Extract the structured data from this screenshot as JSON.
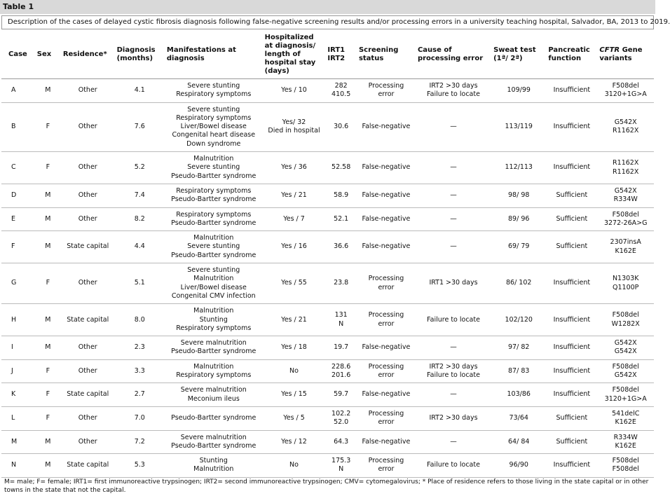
{
  "title": "Table 1",
  "caption": "Description of the cases of delayed cystic fibrosis diagnosis following false-negative screening results and/or processing errors in a university teaching hospital, Salvador, BA, 2013 to 2019.",
  "table": {
    "header": [
      [
        "Case"
      ],
      [
        "Sex"
      ],
      [
        "Residence*"
      ],
      [
        "Diagnosis",
        "(months)"
      ],
      [
        "Manifestations at",
        "diagnosis"
      ],
      [
        "Hospitalized",
        "at diagnosis/",
        "length of",
        "hospital stay",
        "(days)"
      ],
      [
        "IRT1",
        "IRT2"
      ],
      [
        "Screening",
        "status"
      ],
      [
        "Cause of",
        "processing error"
      ],
      [
        "Sweat test",
        "(1ª/ 2ª)"
      ],
      [
        "Pancreatic",
        "function"
      ],
      [
        "CFTR",
        " Gene",
        "variants"
      ]
    ],
    "rows": [
      [
        [
          "A"
        ],
        [
          "M"
        ],
        [
          "Other"
        ],
        [
          "4.1"
        ],
        [
          "Severe stunting",
          "Respiratory symptoms"
        ],
        [
          "Yes / 10"
        ],
        [
          "282",
          "410.5"
        ],
        [
          "Processing",
          "error"
        ],
        [
          "IRT2 >30 days",
          "Failure to locate"
        ],
        [
          "109/99"
        ],
        [
          "Insufficient"
        ],
        [
          "F508del",
          "3120+1G>A"
        ]
      ],
      [
        [
          "B"
        ],
        [
          "F"
        ],
        [
          "Other"
        ],
        [
          "7.6"
        ],
        [
          "Severe stunting",
          "Respiratory symptoms",
          "Liver/Bowel disease",
          "Congenital heart disease",
          "Down syndrome"
        ],
        [
          "Yes/ 32",
          "Died in hospital"
        ],
        [
          "30.6"
        ],
        [
          "False-negative"
        ],
        [
          "—"
        ],
        [
          "113/119"
        ],
        [
          "Insufficient"
        ],
        [
          "G542X",
          "R1162X"
        ]
      ],
      [
        [
          "C"
        ],
        [
          "F"
        ],
        [
          "Other"
        ],
        [
          "5.2"
        ],
        [
          "Malnutrition",
          "Severe stunting",
          "Pseudo-Bartter syndrome"
        ],
        [
          "Yes / 36"
        ],
        [
          "52.58"
        ],
        [
          "False-negative"
        ],
        [
          "—"
        ],
        [
          "112/113"
        ],
        [
          "Insufficient"
        ],
        [
          "R1162X",
          "R1162X"
        ]
      ],
      [
        [
          "D"
        ],
        [
          "M"
        ],
        [
          "Other"
        ],
        [
          "7.4"
        ],
        [
          "Respiratory symptoms",
          "Pseudo-Bartter syndrome"
        ],
        [
          "Yes / 21"
        ],
        [
          "58.9"
        ],
        [
          "False-negative"
        ],
        [
          "—"
        ],
        [
          "98/ 98"
        ],
        [
          "Sufficient"
        ],
        [
          "G542X",
          "R334W"
        ]
      ],
      [
        [
          "E"
        ],
        [
          "M"
        ],
        [
          "Other"
        ],
        [
          "8.2"
        ],
        [
          "Respiratory symptoms",
          "Pseudo-Bartter syndrome"
        ],
        [
          "Yes / 7"
        ],
        [
          "52.1"
        ],
        [
          "False-negative"
        ],
        [
          "—"
        ],
        [
          "89/ 96"
        ],
        [
          "Sufficient"
        ],
        [
          "F508del",
          "3272-26A>G"
        ]
      ],
      [
        [
          "F"
        ],
        [
          "M"
        ],
        [
          "State capital"
        ],
        [
          "4.4"
        ],
        [
          "Malnutrition",
          "Severe stunting",
          "Pseudo-Bartter syndrome"
        ],
        [
          "Yes / 16"
        ],
        [
          "36.6"
        ],
        [
          "False-negative"
        ],
        [
          "—"
        ],
        [
          "69/ 79"
        ],
        [
          "Sufficient"
        ],
        [
          "2307insA",
          "K162E"
        ]
      ],
      [
        [
          "G"
        ],
        [
          "F"
        ],
        [
          "Other"
        ],
        [
          "5.1"
        ],
        [
          "Severe stunting",
          "Malnutrition",
          "Liver/Bowel disease",
          "Congenital CMV infection"
        ],
        [
          "Yes / 55"
        ],
        [
          "23.8"
        ],
        [
          "Processing",
          "error"
        ],
        [
          "IRT1 >30 days"
        ],
        [
          "86/ 102"
        ],
        [
          "Insufficient"
        ],
        [
          "N1303K",
          "Q1100P"
        ]
      ],
      [
        [
          "H"
        ],
        [
          "M"
        ],
        [
          "State capital"
        ],
        [
          "8.0"
        ],
        [
          "Malnutrition",
          "Stunting",
          "Respiratory symptoms"
        ],
        [
          "Yes / 21"
        ],
        [
          "131",
          "N"
        ],
        [
          "Processing",
          "error"
        ],
        [
          "Failure to locate"
        ],
        [
          "102/120"
        ],
        [
          "Insufficient"
        ],
        [
          "F508del",
          "W1282X"
        ]
      ],
      [
        [
          "I"
        ],
        [
          "M"
        ],
        [
          "Other"
        ],
        [
          "2.3"
        ],
        [
          "Severe malnutrition",
          "Pseudo-Bartter syndrome"
        ],
        [
          "Yes / 18"
        ],
        [
          "19.7"
        ],
        [
          "False-negative"
        ],
        [
          "—"
        ],
        [
          "97/ 82"
        ],
        [
          "Insufficient"
        ],
        [
          "G542X",
          "G542X"
        ]
      ],
      [
        [
          "J"
        ],
        [
          "F"
        ],
        [
          "Other"
        ],
        [
          "3.3"
        ],
        [
          "Malnutrition",
          "Respiratory symptoms"
        ],
        [
          "No"
        ],
        [
          "228.6",
          "201.6"
        ],
        [
          "Processing",
          "error"
        ],
        [
          "IRT2 >30 days",
          "Failure to locate"
        ],
        [
          "87/ 83"
        ],
        [
          "Insufficient"
        ],
        [
          "F508del",
          "G542X"
        ]
      ],
      [
        [
          "K"
        ],
        [
          "F"
        ],
        [
          "State capital"
        ],
        [
          "2.7"
        ],
        [
          "Severe malnutrition",
          "Meconium ileus"
        ],
        [
          "Yes / 15"
        ],
        [
          "59.7"
        ],
        [
          "False-negative"
        ],
        [
          "—"
        ],
        [
          "103/86"
        ],
        [
          "Insufficient"
        ],
        [
          "F508del",
          "3120+1G>A"
        ]
      ],
      [
        [
          "L"
        ],
        [
          "F"
        ],
        [
          "Other"
        ],
        [
          "7.0"
        ],
        [
          "Pseudo-Bartter syndrome"
        ],
        [
          "Yes / 5"
        ],
        [
          "102.2",
          "52.0"
        ],
        [
          "Processing",
          "error"
        ],
        [
          "IRT2 >30 days"
        ],
        [
          "73/64"
        ],
        [
          "Sufficient"
        ],
        [
          "541delC",
          "K162E"
        ]
      ],
      [
        [
          "M"
        ],
        [
          "M"
        ],
        [
          "Other"
        ],
        [
          "7.2"
        ],
        [
          "Severe malnutrition",
          "Pseudo-Bartter syndrome"
        ],
        [
          "Yes / 12"
        ],
        [
          "64.3"
        ],
        [
          "False-negative"
        ],
        [
          "—"
        ],
        [
          "64/ 84"
        ],
        [
          "Sufficient"
        ],
        [
          "R334W",
          "K162E"
        ]
      ],
      [
        [
          "N"
        ],
        [
          "M"
        ],
        [
          "State capital"
        ],
        [
          "5.3"
        ],
        [
          "Stunting",
          "Malnutrition"
        ],
        [
          "No"
        ],
        [
          "175.3",
          "N"
        ],
        [
          "Processing",
          "error"
        ],
        [
          "Failure to locate"
        ],
        [
          "96/90"
        ],
        [
          "Insufficient"
        ],
        [
          "F508del",
          "F508del"
        ]
      ]
    ]
  },
  "footnote": "M= male; F= female; IRT1= first immunoreactive trypsinogen; IRT2= second immunoreactive trypsinogen; CMV= cytomegalovirus; * Place of residence refers to those living in the state capital or in other towns in the state that not the capital."
}
